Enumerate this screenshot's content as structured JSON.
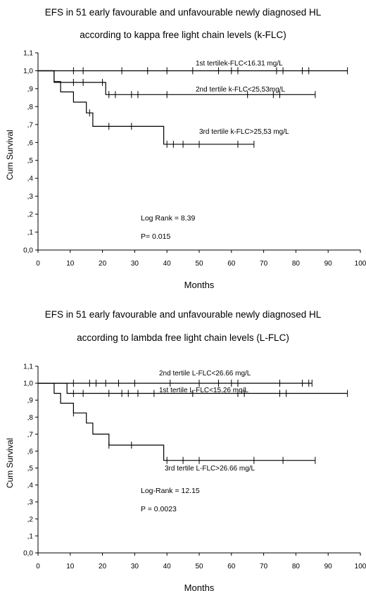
{
  "charts": [
    {
      "title_line1": "EFS in 51 early favourable and unfavourable newly diagnosed HL",
      "title_line2": "according to kappa free light chain levels (k-FLC)",
      "chart_data": {
        "type": "line",
        "xlabel": "Months",
        "ylabel": "Cum Survival",
        "xlim": [
          0,
          100
        ],
        "ylim": [
          0.0,
          1.1
        ],
        "x_ticks": [
          "0",
          "10",
          "20",
          "30",
          "40",
          "50",
          "60",
          "70",
          "80",
          "90",
          "100"
        ],
        "y_ticks": [
          "0,0",
          ",1",
          ",2",
          ",3",
          ",4",
          ",5",
          ",6",
          ",7",
          ",8",
          ",9",
          "1,0",
          "1,1"
        ],
        "grid": false,
        "series": [
          {
            "name": "1st tertilek-FLC<16.31 mg/L",
            "steps": [
              [
                0,
                1.0
              ],
              [
                96,
                1.0
              ]
            ],
            "censored": [
              11,
              14,
              26,
              34,
              40,
              48,
              56,
              60,
              62,
              74,
              76,
              82,
              84,
              96
            ]
          },
          {
            "name": "2nd tertile k-FLC<25,53mg/L",
            "steps": [
              [
                0,
                1.0
              ],
              [
                5,
                1.0
              ],
              [
                5,
                0.935
              ],
              [
                21,
                0.935
              ],
              [
                21,
                0.867
              ],
              [
                86,
                0.867
              ]
            ],
            "censored": [
              11,
              14,
              20,
              22,
              24,
              29,
              31,
              40,
              65,
              73,
              75,
              86
            ]
          },
          {
            "name": "3rd tertile k-FLC>25,53 mg/L",
            "steps": [
              [
                0,
                1.0
              ],
              [
                5,
                1.0
              ],
              [
                5,
                0.94
              ],
              [
                7,
                0.94
              ],
              [
                7,
                0.882
              ],
              [
                11,
                0.882
              ],
              [
                11,
                0.825
              ],
              [
                15,
                0.825
              ],
              [
                15,
                0.765
              ],
              [
                17,
                0.765
              ],
              [
                17,
                0.69
              ],
              [
                39,
                0.69
              ],
              [
                39,
                0.59
              ],
              [
                67,
                0.59
              ]
            ],
            "censored": [
              16,
              22,
              29,
              40,
              42,
              45,
              50,
              62,
              67
            ]
          }
        ],
        "annotations": [
          "Log Rank = 8.39",
          "P= 0.015"
        ]
      }
    },
    {
      "title_line1": "EFS in 51 early favourable and unfavourable newly diagnosed HL",
      "title_line2": "according to lambda free light chain levels (L-FLC)",
      "chart_data": {
        "type": "line",
        "xlabel": "Months",
        "ylabel": "Cum Survival",
        "xlim": [
          0,
          100
        ],
        "ylim": [
          0.0,
          1.1
        ],
        "x_ticks": [
          "0",
          "10",
          "20",
          "30",
          "40",
          "50",
          "60",
          "70",
          "80",
          "90",
          "100"
        ],
        "y_ticks": [
          "0,0",
          ",1",
          ",2",
          ",3",
          ",4",
          ",5",
          ",6",
          ",7",
          ",8",
          ",9",
          "1,0",
          "1,1"
        ],
        "grid": false,
        "series": [
          {
            "name": "2nd tertile L-FLC<26.66 mg/L",
            "steps": [
              [
                0,
                1.0
              ],
              [
                85,
                1.0
              ]
            ],
            "censored": [
              11,
              16,
              18,
              21,
              25,
              30,
              41,
              50,
              56,
              60,
              62,
              75,
              82,
              84,
              85
            ]
          },
          {
            "name": "1st tertile L-FLC<15.26 mg/L",
            "steps": [
              [
                0,
                1.0
              ],
              [
                9,
                1.0
              ],
              [
                9,
                0.94
              ],
              [
                96,
                0.94
              ]
            ],
            "censored": [
              11,
              14,
              22,
              26,
              28,
              31,
              36,
              48,
              62,
              64,
              75,
              77,
              96
            ]
          },
          {
            "name": "3rd tertile L-FLC>26.66 mg/L",
            "steps": [
              [
                0,
                1.0
              ],
              [
                5,
                1.0
              ],
              [
                5,
                0.94
              ],
              [
                7,
                0.94
              ],
              [
                7,
                0.882
              ],
              [
                11,
                0.882
              ],
              [
                11,
                0.825
              ],
              [
                15,
                0.825
              ],
              [
                15,
                0.765
              ],
              [
                17,
                0.765
              ],
              [
                17,
                0.7
              ],
              [
                22,
                0.7
              ],
              [
                22,
                0.635
              ],
              [
                39,
                0.635
              ],
              [
                39,
                0.545
              ],
              [
                86,
                0.545
              ]
            ],
            "censored": [
              11,
              22,
              29,
              40,
              45,
              50,
              67,
              76,
              86
            ]
          }
        ],
        "annotations": [
          "Log-Rank = 12.15",
          "P = 0.0023"
        ]
      }
    }
  ]
}
